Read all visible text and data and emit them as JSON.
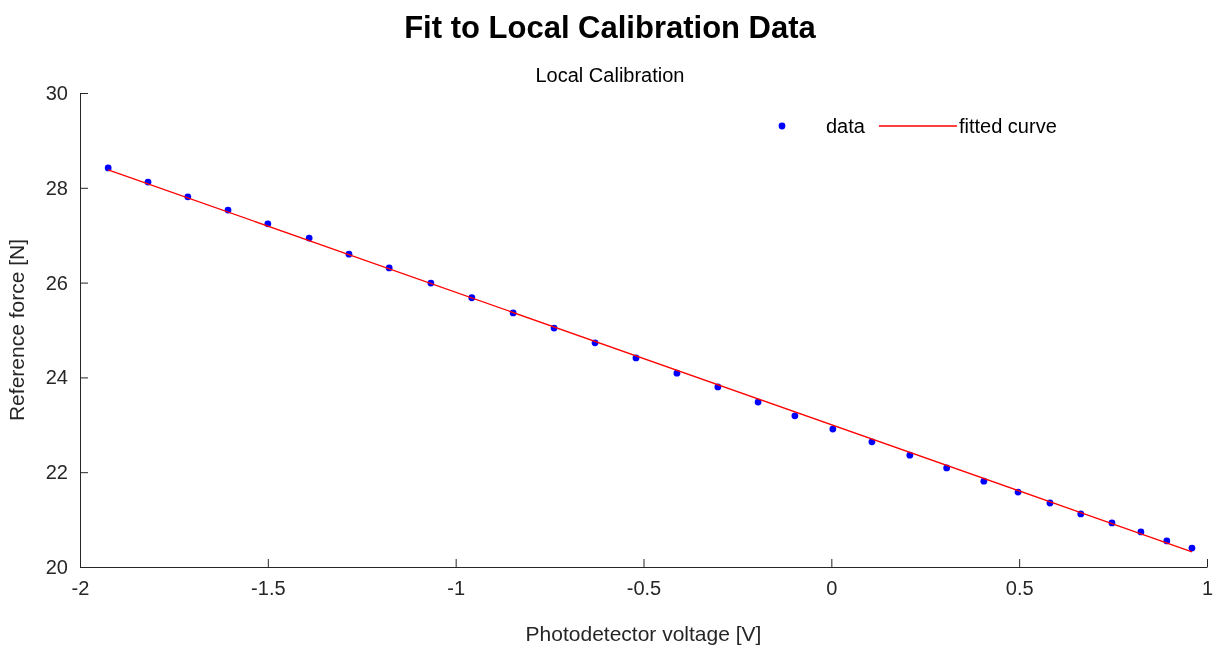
{
  "chart_data": {
    "type": "scatter",
    "title": "Fit to Local Calibration Data",
    "subtitle": "Local Calibration",
    "xlabel": "Photodetector voltage [V]",
    "ylabel": "Reference force [N]",
    "xlim": [
      -2,
      1
    ],
    "xticks": [
      -2,
      -1.5,
      -1,
      -0.5,
      0,
      0.5,
      1
    ],
    "ylim": [
      20,
      30
    ],
    "yticks": [
      20,
      22,
      24,
      26,
      28,
      30
    ],
    "grid": false,
    "legend": "top right",
    "series": [
      {
        "name": "data",
        "marker": "circle",
        "color": "#0000ff",
        "x": [
          -1.925,
          -1.819,
          -1.713,
          -1.606,
          -1.5,
          -1.39,
          -1.284,
          -1.177,
          -1.066,
          -0.957,
          -0.847,
          -0.738,
          -0.629,
          -0.52,
          -0.411,
          -0.302,
          -0.195,
          -0.097,
          0.004,
          0.108,
          0.209,
          0.307,
          0.406,
          0.497,
          0.582,
          0.664,
          0.747,
          0.824,
          0.893,
          0.96
        ],
        "values": [
          28.42,
          28.12,
          27.81,
          27.53,
          27.24,
          26.94,
          26.6,
          26.31,
          25.99,
          25.68,
          25.36,
          25.04,
          24.73,
          24.41,
          24.09,
          23.8,
          23.48,
          23.19,
          22.91,
          22.64,
          22.36,
          22.09,
          21.81,
          21.58,
          21.35,
          21.12,
          20.93,
          20.74,
          20.55,
          20.4
        ]
      },
      {
        "name": "fitted curve",
        "type": "line",
        "marker": "none",
        "line_style": "solid",
        "color": "#ff0000",
        "x": [
          -1.925,
          0.96
        ],
        "values": [
          28.38,
          20.32
        ]
      }
    ]
  }
}
